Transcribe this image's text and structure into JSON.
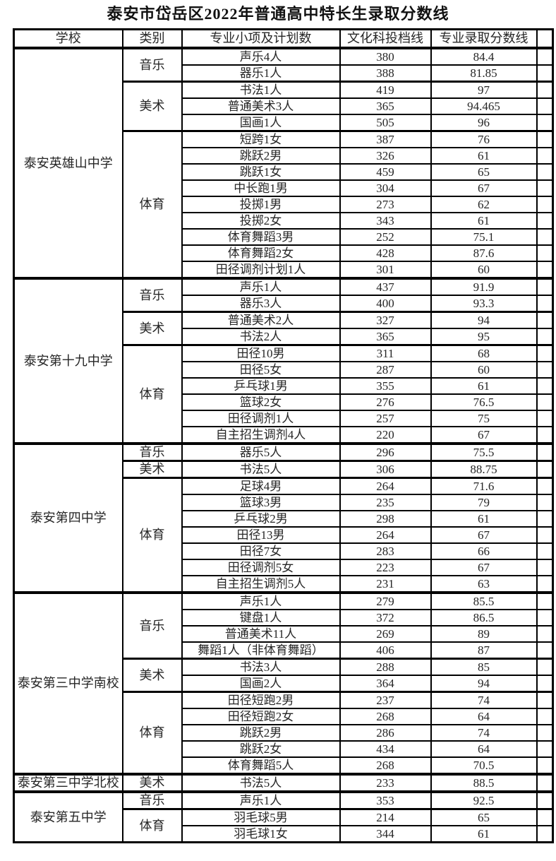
{
  "title": "泰安市岱岳区2022年普通高中特长生录取分数线",
  "colors": {
    "border": "#000000",
    "text": "#262626",
    "background": "#ffffff"
  },
  "table": {
    "headers": [
      "学校",
      "类别",
      "专业小项及计划数",
      "文化科投档线",
      "专业录取分数线"
    ],
    "schools": [
      {
        "name": "泰安英雄山中学",
        "categories": [
          {
            "name": "音乐",
            "rows": [
              {
                "item": "声乐4人",
                "culture_line": "380",
                "major_line": "84.4"
              },
              {
                "item": "器乐1人",
                "culture_line": "388",
                "major_line": "81.85"
              }
            ]
          },
          {
            "name": "美术",
            "rows": [
              {
                "item": "书法1人",
                "culture_line": "419",
                "major_line": "97"
              },
              {
                "item": "普通美术3人",
                "culture_line": "365",
                "major_line": "94.465"
              },
              {
                "item": "国画1人",
                "culture_line": "505",
                "major_line": "96"
              }
            ]
          },
          {
            "name": "体育",
            "rows": [
              {
                "item": "短跨1女",
                "culture_line": "387",
                "major_line": "76"
              },
              {
                "item": "跳跃2男",
                "culture_line": "326",
                "major_line": "61"
              },
              {
                "item": "跳跃1女",
                "culture_line": "459",
                "major_line": "65"
              },
              {
                "item": "中长跑1男",
                "culture_line": "304",
                "major_line": "67"
              },
              {
                "item": "投掷1男",
                "culture_line": "273",
                "major_line": "62"
              },
              {
                "item": "投掷2女",
                "culture_line": "343",
                "major_line": "61"
              },
              {
                "item": "体育舞蹈3男",
                "culture_line": "252",
                "major_line": "75.1"
              },
              {
                "item": "体育舞蹈2女",
                "culture_line": "428",
                "major_line": "87.6"
              },
              {
                "item": "田径调剂计划1人",
                "culture_line": "301",
                "major_line": "60"
              }
            ]
          }
        ]
      },
      {
        "name": "泰安第十九中学",
        "categories": [
          {
            "name": "音乐",
            "rows": [
              {
                "item": "声乐1人",
                "culture_line": "437",
                "major_line": "91.9"
              },
              {
                "item": "器乐3人",
                "culture_line": "400",
                "major_line": "93.3"
              }
            ]
          },
          {
            "name": "美术",
            "rows": [
              {
                "item": "普通美术2人",
                "culture_line": "327",
                "major_line": "94"
              },
              {
                "item": "书法2人",
                "culture_line": "365",
                "major_line": "95"
              }
            ]
          },
          {
            "name": "体育",
            "rows": [
              {
                "item": "田径10男",
                "culture_line": "311",
                "major_line": "68"
              },
              {
                "item": "田径5女",
                "culture_line": "287",
                "major_line": "60"
              },
              {
                "item": "乒乓球1男",
                "culture_line": "355",
                "major_line": "61"
              },
              {
                "item": "篮球2女",
                "culture_line": "276",
                "major_line": "76.5"
              },
              {
                "item": "田径调剂1人",
                "culture_line": "257",
                "major_line": "75"
              },
              {
                "item": "自主招生调剂4人",
                "culture_line": "220",
                "major_line": "67"
              }
            ]
          }
        ]
      },
      {
        "name": "泰安第四中学",
        "categories": [
          {
            "name": "音乐",
            "rows": [
              {
                "item": "器乐5人",
                "culture_line": "296",
                "major_line": "75.5"
              }
            ]
          },
          {
            "name": "美术",
            "rows": [
              {
                "item": "书法5人",
                "culture_line": "306",
                "major_line": "88.75"
              }
            ]
          },
          {
            "name": "体育",
            "rows": [
              {
                "item": "足球4男",
                "culture_line": "264",
                "major_line": "71.6"
              },
              {
                "item": "篮球3男",
                "culture_line": "235",
                "major_line": "79"
              },
              {
                "item": "乒乓球2男",
                "culture_line": "298",
                "major_line": "61"
              },
              {
                "item": "田径13男",
                "culture_line": "264",
                "major_line": "67"
              },
              {
                "item": "田径7女",
                "culture_line": "283",
                "major_line": "66"
              },
              {
                "item": "田径调剂5女",
                "culture_line": "223",
                "major_line": "67"
              },
              {
                "item": "自主招生调剂5人",
                "culture_line": "231",
                "major_line": "63"
              }
            ]
          }
        ]
      },
      {
        "name": "泰安第三中学南校",
        "categories": [
          {
            "name": "音乐",
            "rows": [
              {
                "item": "声乐1人",
                "culture_line": "279",
                "major_line": "85.5"
              },
              {
                "item": "键盘1人",
                "culture_line": "372",
                "major_line": "86.5"
              },
              {
                "item": "普通美术11人",
                "culture_line": "269",
                "major_line": "89"
              },
              {
                "item": "舞蹈1人（非体育舞蹈）",
                "culture_line": "406",
                "major_line": "87"
              }
            ]
          },
          {
            "name": "美术",
            "rows": [
              {
                "item": "书法3人",
                "culture_line": "288",
                "major_line": "85"
              },
              {
                "item": "国画2人",
                "culture_line": "364",
                "major_line": "94"
              }
            ]
          },
          {
            "name": "体育",
            "rows": [
              {
                "item": "田径短跑2男",
                "culture_line": "237",
                "major_line": "74"
              },
              {
                "item": "田径短跑2女",
                "culture_line": "268",
                "major_line": "64"
              },
              {
                "item": "跳跃2男",
                "culture_line": "286",
                "major_line": "74"
              },
              {
                "item": "跳跃2女",
                "culture_line": "434",
                "major_line": "64"
              },
              {
                "item": "体育舞蹈5人",
                "culture_line": "268",
                "major_line": "70.5"
              }
            ]
          }
        ]
      },
      {
        "name": "泰安第三中学北校",
        "categories": [
          {
            "name": "美术",
            "rows": [
              {
                "item": "书法5人",
                "culture_line": "233",
                "major_line": "88.5"
              }
            ]
          }
        ]
      },
      {
        "name": "泰安第五中学",
        "categories": [
          {
            "name": "音乐",
            "rows": [
              {
                "item": "声乐1人",
                "culture_line": "353",
                "major_line": "92.5"
              }
            ]
          },
          {
            "name": "体育",
            "rows": [
              {
                "item": "羽毛球5男",
                "culture_line": "214",
                "major_line": "65"
              },
              {
                "item": "羽毛球1女",
                "culture_line": "344",
                "major_line": "61"
              }
            ]
          }
        ]
      }
    ]
  }
}
